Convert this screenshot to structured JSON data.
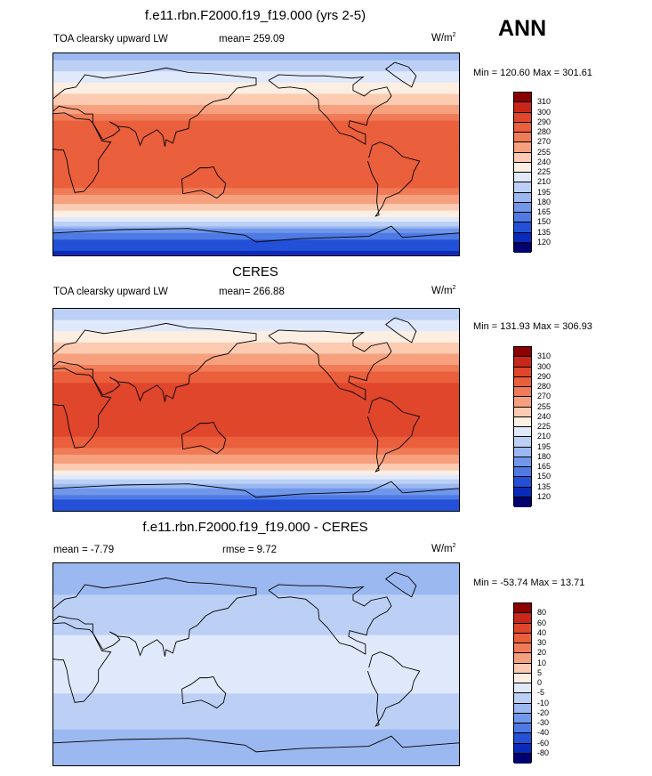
{
  "season": "ANN",
  "panels": [
    {
      "title": "f.e11.rbn.F2000.f19_f19.000 (yrs 2-5)",
      "left_label": "TOA clearsky upward LW",
      "center_label": "mean= 259.09",
      "units": "W/m",
      "units_sup": "2",
      "minmax": "Min = 120.60 Max = 301.61",
      "levels": [
        "310",
        "300",
        "290",
        "280",
        "270",
        "255",
        "240",
        "225",
        "210",
        "195",
        "180",
        "165",
        "150",
        "135",
        "120"
      ],
      "colors": [
        "#8b0000",
        "#c8271a",
        "#e0462b",
        "#ea5f3c",
        "#f07b57",
        "#f7a07e",
        "#fccbb1",
        "#fdeee2",
        "#dfe9fb",
        "#bcd0f6",
        "#9bb8f0",
        "#7197eb",
        "#4f7ae4",
        "#2350d6",
        "#0a2aba",
        "#00006e"
      ],
      "zonal": [
        {
          "lat": 90,
          "v": 185
        },
        {
          "lat": 80,
          "v": 200
        },
        {
          "lat": 70,
          "v": 215
        },
        {
          "lat": 60,
          "v": 230
        },
        {
          "lat": 50,
          "v": 245
        },
        {
          "lat": 42,
          "v": 258
        },
        {
          "lat": 32,
          "v": 278
        },
        {
          "lat": 22,
          "v": 288
        },
        {
          "lat": 10,
          "v": 290
        },
        {
          "lat": 0,
          "v": 288
        },
        {
          "lat": -10,
          "v": 290
        },
        {
          "lat": -22,
          "v": 288
        },
        {
          "lat": -32,
          "v": 278
        },
        {
          "lat": -42,
          "v": 258
        },
        {
          "lat": -50,
          "v": 242
        },
        {
          "lat": -56,
          "v": 225
        },
        {
          "lat": -62,
          "v": 200
        },
        {
          "lat": -70,
          "v": 165
        },
        {
          "lat": -80,
          "v": 140
        },
        {
          "lat": -90,
          "v": 130
        }
      ]
    },
    {
      "title": "CERES",
      "left_label": "TOA clearsky upward LW",
      "center_label": "mean= 266.88",
      "units": "W/m",
      "units_sup": "2",
      "minmax": "Min = 131.93 Max = 306.93",
      "levels": [
        "310",
        "300",
        "290",
        "280",
        "270",
        "255",
        "240",
        "225",
        "210",
        "195",
        "180",
        "165",
        "150",
        "135",
        "120"
      ],
      "colors": [
        "#8b0000",
        "#c8271a",
        "#e0462b",
        "#ea5f3c",
        "#f07b57",
        "#f7a07e",
        "#fccbb1",
        "#fdeee2",
        "#dfe9fb",
        "#bcd0f6",
        "#9bb8f0",
        "#7197eb",
        "#4f7ae4",
        "#2350d6",
        "#0a2aba",
        "#00006e"
      ],
      "zonal": [
        {
          "lat": 90,
          "v": 195
        },
        {
          "lat": 80,
          "v": 210
        },
        {
          "lat": 70,
          "v": 225
        },
        {
          "lat": 60,
          "v": 240
        },
        {
          "lat": 50,
          "v": 255
        },
        {
          "lat": 42,
          "v": 268
        },
        {
          "lat": 32,
          "v": 284
        },
        {
          "lat": 22,
          "v": 292
        },
        {
          "lat": 10,
          "v": 294
        },
        {
          "lat": 0,
          "v": 292
        },
        {
          "lat": -10,
          "v": 294
        },
        {
          "lat": -22,
          "v": 292
        },
        {
          "lat": -32,
          "v": 284
        },
        {
          "lat": -42,
          "v": 268
        },
        {
          "lat": -50,
          "v": 250
        },
        {
          "lat": -56,
          "v": 232
        },
        {
          "lat": -62,
          "v": 208
        },
        {
          "lat": -70,
          "v": 180
        },
        {
          "lat": -80,
          "v": 150
        },
        {
          "lat": -90,
          "v": 140
        }
      ]
    },
    {
      "title": "f.e11.rbn.F2000.f19_f19.000 - CERES",
      "left_label": "mean =  -7.79",
      "center_label": "rmse =    9.72",
      "units": "W/m",
      "units_sup": "2",
      "minmax": "Min = -53.74 Max =  13.71",
      "levels": [
        "80",
        "60",
        "40",
        "30",
        "20",
        "10",
        "5",
        "0",
        "-5",
        "-10",
        "-20",
        "-30",
        "-40",
        "-60",
        "-80"
      ],
      "colors": [
        "#8b0000",
        "#c8271a",
        "#e0462b",
        "#ea5f3c",
        "#f07b57",
        "#f7a07e",
        "#fccbb1",
        "#fdeee2",
        "#dfe9fb",
        "#bcd0f6",
        "#9bb8f0",
        "#7197eb",
        "#4f7ae4",
        "#2350d6",
        "#0a2aba",
        "#00006e"
      ],
      "zonal": [
        {
          "lat": 90,
          "v": -12
        },
        {
          "lat": 70,
          "v": -12
        },
        {
          "lat": 55,
          "v": -8
        },
        {
          "lat": 40,
          "v": -7
        },
        {
          "lat": 20,
          "v": -4
        },
        {
          "lat": 0,
          "v": -4
        },
        {
          "lat": -20,
          "v": -4
        },
        {
          "lat": -40,
          "v": -7
        },
        {
          "lat": -55,
          "v": -9
        },
        {
          "lat": -70,
          "v": -13
        },
        {
          "lat": -90,
          "v": -11
        }
      ]
    }
  ]
}
